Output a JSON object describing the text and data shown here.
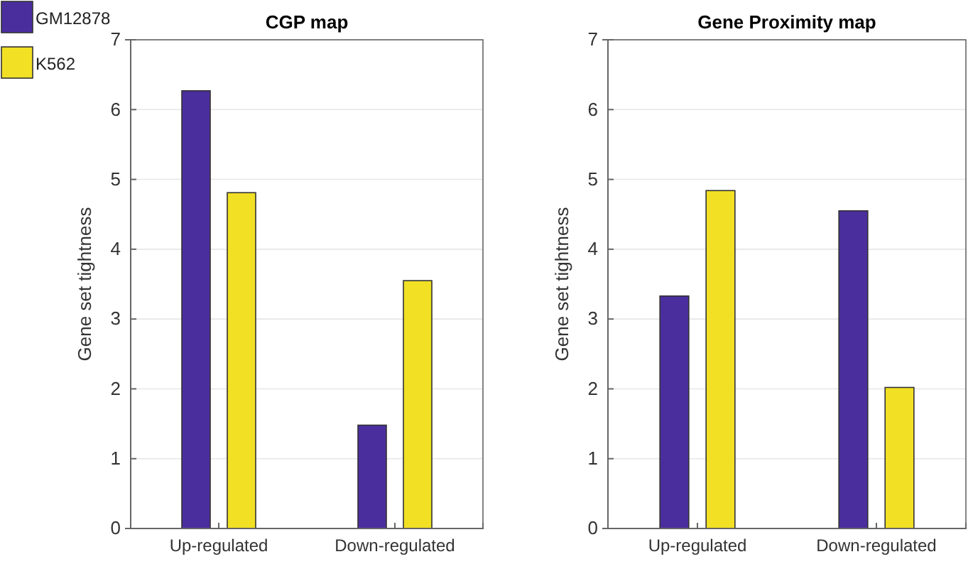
{
  "chart_data": [
    {
      "type": "bar",
      "title": "CGP map",
      "ylabel": "Gene set tightness",
      "categories": [
        "Up-regulated",
        "Down-regulated"
      ],
      "series": [
        {
          "name": "GM12878",
          "color": "#4b2e9e",
          "values": [
            6.27,
            1.48
          ]
        },
        {
          "name": "K562",
          "color": "#f2e024",
          "values": [
            4.81,
            3.55
          ]
        }
      ],
      "ylim": [
        0,
        7
      ],
      "yticks": [
        0,
        1,
        2,
        3,
        4,
        5,
        6,
        7
      ],
      "grid": "y",
      "legend": "top left"
    },
    {
      "type": "bar",
      "title": "Gene Proximity map",
      "ylabel": "Gene set tightness",
      "categories": [
        "Up-regulated",
        "Down-regulated"
      ],
      "series": [
        {
          "color": "#4b2e9e",
          "values": [
            3.33,
            4.55
          ]
        },
        {
          "color": "#f2e024",
          "values": [
            4.84,
            2.02
          ]
        }
      ],
      "ylim": [
        0,
        7
      ],
      "yticks": [
        0,
        1,
        2,
        3,
        4,
        5,
        6,
        7
      ],
      "grid": "y"
    }
  ]
}
